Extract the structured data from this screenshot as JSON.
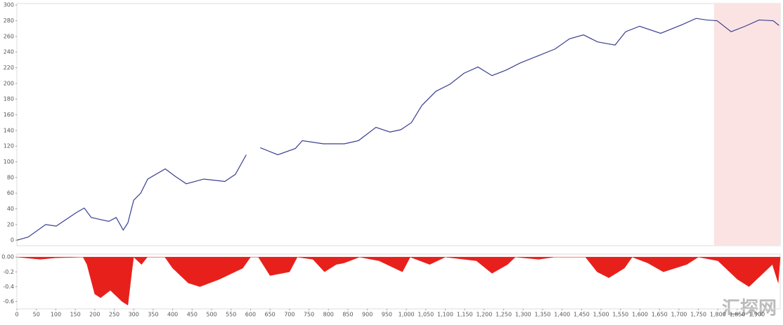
{
  "chart_data": [
    {
      "type": "line",
      "color": "#3a3f8f",
      "x": [
        0,
        29,
        74,
        101,
        152,
        173,
        191,
        209,
        236,
        255,
        273,
        285,
        300,
        318,
        336,
        381,
        408,
        435,
        480,
        534,
        561,
        589,
        607,
        625,
        670,
        715,
        733,
        787,
        841,
        877,
        922,
        958,
        986,
        1013,
        1040,
        1076,
        1112,
        1148,
        1184,
        1220,
        1256,
        1292,
        1337,
        1382,
        1419,
        1455,
        1491,
        1536,
        1563,
        1599,
        1653,
        1708,
        1744,
        1771,
        1798,
        1834,
        1870,
        1906,
        1942,
        1957
      ],
      "values": [
        0,
        4,
        20,
        18,
        35,
        41,
        29,
        27,
        24,
        29,
        13,
        22,
        51,
        60,
        78,
        91,
        81,
        72,
        78,
        75,
        84,
        109,
        null,
        118,
        109,
        117,
        127,
        123,
        123,
        127,
        144,
        138,
        141,
        150,
        172,
        190,
        199,
        213,
        221,
        210,
        217,
        226,
        235,
        244,
        257,
        262,
        253,
        249,
        266,
        273,
        264,
        275,
        283,
        281,
        280,
        266,
        273,
        281,
        280,
        274
      ],
      "xlim": [
        0,
        1960
      ],
      "ylim": [
        -7,
        302
      ],
      "yticks": [
        0,
        20,
        40,
        60,
        80,
        100,
        120,
        140,
        160,
        180,
        200,
        220,
        240,
        260,
        280,
        300
      ],
      "highlight": {
        "xlim": [
          1790,
          1960
        ],
        "color": "#fbe3e3"
      }
    },
    {
      "type": "area",
      "color": "#e8201c",
      "x": [
        0,
        60,
        100,
        170,
        180,
        200,
        215,
        240,
        270,
        285,
        295,
        300,
        320,
        335,
        380,
        400,
        440,
        470,
        520,
        580,
        600,
        620,
        650,
        700,
        720,
        760,
        790,
        820,
        840,
        880,
        930,
        970,
        990,
        1010,
        1060,
        1100,
        1180,
        1220,
        1260,
        1280,
        1340,
        1380,
        1460,
        1490,
        1520,
        1560,
        1580,
        1620,
        1660,
        1720,
        1750,
        1800,
        1850,
        1880,
        1910,
        1940,
        1955,
        1960
      ],
      "values": [
        0,
        -0.03,
        -0.01,
        0,
        -0.1,
        -0.5,
        -0.55,
        -0.45,
        -0.6,
        -0.65,
        -0.2,
        0,
        -0.1,
        0,
        0,
        -0.15,
        -0.35,
        -0.4,
        -0.3,
        -0.15,
        0,
        0,
        -0.25,
        -0.2,
        0,
        -0.03,
        -0.2,
        -0.1,
        -0.08,
        0,
        -0.05,
        -0.15,
        -0.2,
        0,
        -0.1,
        0,
        -0.05,
        -0.22,
        -0.1,
        0,
        -0.03,
        0,
        0,
        -0.2,
        -0.28,
        -0.15,
        0,
        -0.08,
        -0.2,
        -0.1,
        0,
        -0.05,
        -0.3,
        -0.4,
        -0.25,
        -0.1,
        -0.35,
        0
      ],
      "xlim": [
        0,
        1960
      ],
      "ylim": [
        -0.7,
        0.04
      ],
      "yticks": [
        {
          "value": 0,
          "label": "0.00"
        },
        -0.2,
        -0.4,
        -0.6
      ],
      "xticks": [
        0,
        50,
        100,
        150,
        200,
        250,
        300,
        350,
        400,
        450,
        500,
        550,
        600,
        650,
        700,
        750,
        800,
        850,
        900,
        950,
        {
          "value": 1000,
          "label": "1,000"
        },
        {
          "value": 1050,
          "label": "1,050"
        },
        {
          "value": 1100,
          "label": "1,100"
        },
        {
          "value": 1150,
          "label": "1,150"
        },
        {
          "value": 1200,
          "label": "1,200"
        },
        {
          "value": 1250,
          "label": "1,250"
        },
        {
          "value": 1300,
          "label": "1,300"
        },
        {
          "value": 1350,
          "label": "1,350"
        },
        {
          "value": 1400,
          "label": "1,400"
        },
        {
          "value": 1450,
          "label": "1,450"
        },
        {
          "value": 1500,
          "label": "1,500"
        },
        {
          "value": 1550,
          "label": "1,550"
        },
        {
          "value": 1600,
          "label": "1,600"
        },
        {
          "value": 1650,
          "label": "1,650"
        },
        {
          "value": 1700,
          "label": "1,700"
        },
        {
          "value": 1750,
          "label": "1,750"
        },
        {
          "value": 1800,
          "label": "1,800"
        },
        {
          "value": 1850,
          "label": "1,850"
        },
        {
          "value": 1900,
          "label": "1,900"
        }
      ]
    }
  ],
  "watermark": "汇探网"
}
